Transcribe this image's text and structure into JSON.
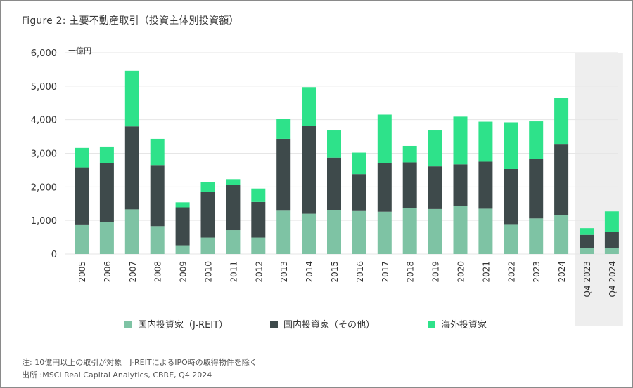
{
  "title": "Figure 2: 主要不動産取引（投資主体別投資額）",
  "notes": [
    "注: 10億円以上の取引が対象　J-REITによるIPO時の取得物件を除く",
    "出所 :MSCI Real Capital Analytics, CBRE, Q4 2024"
  ],
  "chart_data": {
    "type": "bar",
    "stacked": true,
    "unit_label": "十億円",
    "ylim": [
      0,
      6000
    ],
    "yticks": [
      "0",
      "1,000",
      "2,000",
      "3,000",
      "4,000",
      "5,000",
      "6,000"
    ],
    "categories": [
      "2005",
      "2006",
      "2007",
      "2008",
      "2009",
      "2010",
      "2011",
      "2012",
      "2013",
      "2014",
      "2015",
      "2016",
      "2017",
      "2018",
      "2019",
      "2020",
      "2021",
      "2022",
      "2023",
      "2024",
      "Q4 2023",
      "Q4 2024"
    ],
    "highlight_categories": [
      "Q4 2023",
      "Q4 2024"
    ],
    "grid": true,
    "legend_position": "bottom",
    "colors": {
      "jreit": "#7ec3a4",
      "domestic_other": "#3e4a4b",
      "foreign": "#2ee28a",
      "highlight_band": "#eeeeee",
      "grid": "#e6e6e6"
    },
    "series": [
      {
        "key": "jreit",
        "name": "国内投資家（J-REIT）",
        "values": [
          880,
          960,
          1330,
          830,
          260,
          490,
          710,
          490,
          1290,
          1200,
          1310,
          1280,
          1260,
          1360,
          1340,
          1430,
          1350,
          890,
          1060,
          1170,
          170,
          170
        ]
      },
      {
        "key": "domestic_other",
        "name": "国内投資家（その他）",
        "values": [
          1700,
          1740,
          2470,
          1820,
          1130,
          1370,
          1340,
          1060,
          2140,
          2620,
          1560,
          1100,
          1440,
          1370,
          1270,
          1240,
          1400,
          1640,
          1780,
          2110,
          400,
          490
        ]
      },
      {
        "key": "foreign",
        "name": "海外投資家",
        "values": [
          580,
          500,
          1660,
          780,
          150,
          290,
          180,
          400,
          600,
          1150,
          830,
          640,
          1450,
          490,
          1090,
          1420,
          1190,
          1390,
          1110,
          1380,
          200,
          610
        ]
      }
    ]
  }
}
